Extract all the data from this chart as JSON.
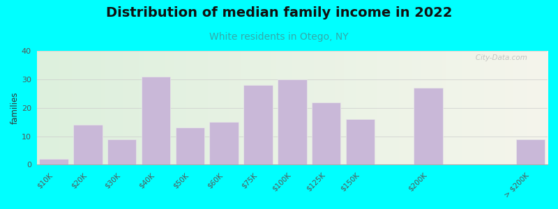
{
  "title": "Distribution of median family income in 2022",
  "subtitle": "White residents in Otego, NY",
  "ylabel": "families",
  "categories": [
    "$10K",
    "$20K",
    "$30K",
    "$40K",
    "$50K",
    "$60K",
    "$75K",
    "$100K",
    "$125K",
    "$150K",
    "$200K",
    "> $200K"
  ],
  "x_positions": [
    0,
    1,
    2,
    3,
    4,
    5,
    6,
    7,
    8,
    9,
    11,
    14
  ],
  "values": [
    2,
    14,
    9,
    31,
    13,
    15,
    28,
    30,
    22,
    16,
    27,
    9
  ],
  "bar_color": "#c9b8d8",
  "bar_edge_color": "#e8e8e8",
  "ylim": [
    0,
    40
  ],
  "yticks": [
    0,
    10,
    20,
    30,
    40
  ],
  "background_color": "#00ffff",
  "plot_bg_left_color": "#ddf0dd",
  "plot_bg_right_color": "#f5f5ec",
  "title_fontsize": 14,
  "subtitle_fontsize": 10,
  "subtitle_color": "#33aaaa",
  "watermark": "   City-Data.com",
  "bar_width": 0.85
}
